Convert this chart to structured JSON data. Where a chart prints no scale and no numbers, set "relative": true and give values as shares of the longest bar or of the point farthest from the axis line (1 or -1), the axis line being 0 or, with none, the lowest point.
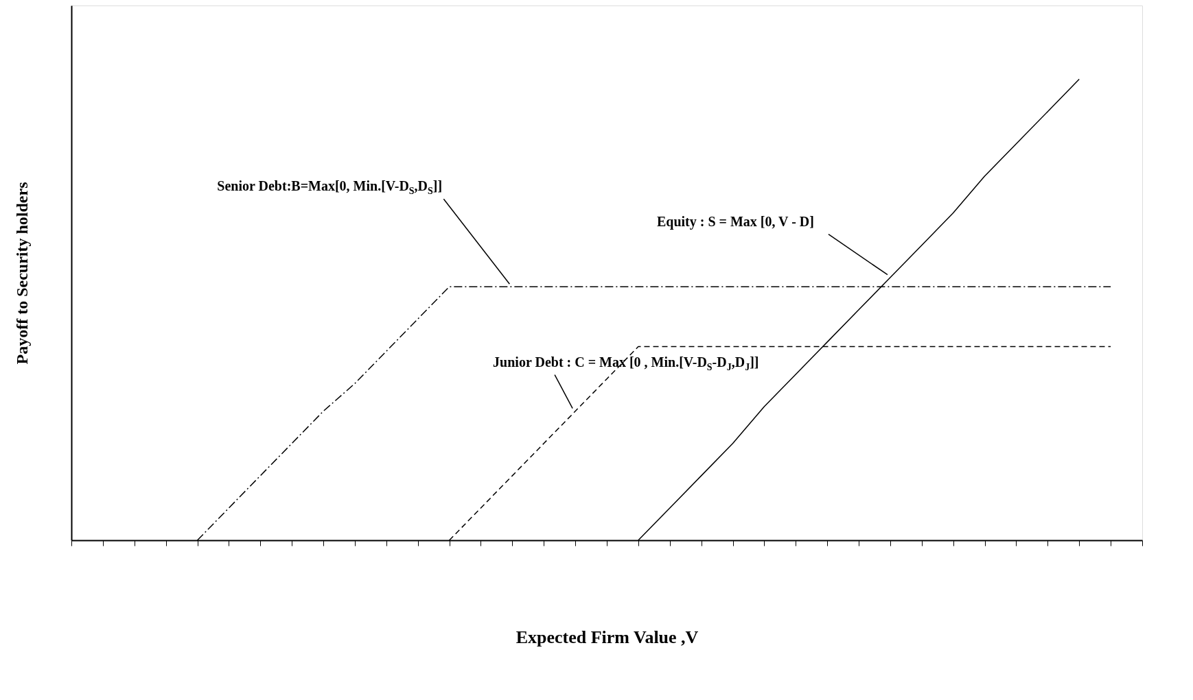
{
  "chart_data": {
    "type": "line",
    "relative": true,
    "xlabel": "Expected Firm Value ,V",
    "ylabel": "Payoff  to Security  holders",
    "categories": [
      null,
      null,
      null,
      null,
      null,
      null,
      null,
      null,
      null,
      null,
      null,
      null,
      null,
      null,
      null,
      null,
      null,
      null,
      null,
      null,
      null,
      null,
      null,
      null,
      null,
      null,
      null,
      null,
      null,
      null,
      null,
      null,
      null,
      null,
      null
    ],
    "series": [
      {
        "color": "#000000",
        "line_style": "dotted",
        "values": [
          null,
          null,
          null,
          null,
          0,
          0.07,
          0.14,
          0.21,
          0.28,
          0.34,
          0.41,
          0.48,
          0.55,
          0.55,
          0.55,
          0.55,
          0.55,
          0.55,
          0.55,
          0.55,
          0.55,
          0.55,
          0.55,
          0.55,
          0.55,
          0.55,
          0.55,
          0.55,
          0.55,
          0.55,
          0.55,
          0.55,
          0.55,
          0.55,
          null
        ]
      },
      {
        "color": "#000000",
        "line_style": "dashed",
        "values": [
          null,
          null,
          null,
          null,
          null,
          null,
          null,
          null,
          null,
          null,
          null,
          null,
          0,
          0.07,
          0.14,
          0.21,
          0.28,
          0.35,
          0.42,
          0.42,
          0.42,
          0.42,
          0.42,
          0.42,
          0.42,
          0.42,
          0.42,
          0.42,
          0.42,
          0.42,
          0.42,
          0.42,
          0.42,
          0.42,
          null
        ]
      },
      {
        "color": "#000000",
        "line_style": "solid",
        "values": [
          null,
          null,
          null,
          null,
          null,
          null,
          null,
          null,
          null,
          null,
          null,
          null,
          null,
          null,
          null,
          null,
          null,
          null,
          0,
          0.07,
          0.14,
          0.21,
          0.29,
          0.36,
          0.43,
          0.5,
          0.57,
          0.64,
          0.71,
          0.79,
          0.86,
          0.93,
          1,
          null,
          null
        ]
      }
    ],
    "annotations": [
      "Senior Debt:B=Max[0, Min.[V-D$_{S}$,D$_{S}$]]",
      "Junior Debt : C = Max [0 , Min.[V-D$_{S}$-D$_{J}$,D$_{J}$]]",
      "Equity : S = Max [0, V - D]"
    ],
    "grid": false,
    "legend": false,
    "marker": "none"
  }
}
